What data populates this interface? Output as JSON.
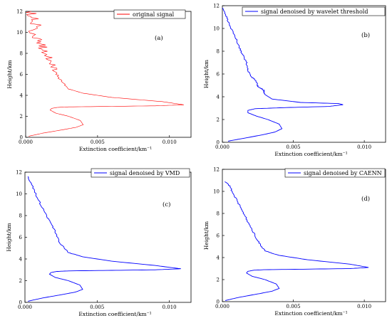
{
  "chart_data": [
    {
      "type": "line",
      "panel_label": "(a)",
      "xlabel": "Extinction coefficient/km⁻¹",
      "ylabel": "Height/km",
      "xlim": [
        0,
        0.0115
      ],
      "ylim": [
        0,
        12
      ],
      "xticks": [
        "0.000",
        "0.005",
        "0.010"
      ],
      "xtick_values": [
        0,
        0.005,
        0.01
      ],
      "yticks": [
        "0",
        "2",
        "4",
        "6",
        "8",
        "10",
        "12"
      ],
      "ytick_values": [
        0,
        2,
        4,
        6,
        8,
        10,
        12
      ],
      "legend_position": "top-right",
      "series": [
        {
          "name": "original signal",
          "color": "#ff0000",
          "noisy": true,
          "x": [
            0.0002,
            0.0012,
            0.0025,
            0.0035,
            0.004,
            0.0038,
            0.003,
            0.0021,
            0.0017,
            0.0018,
            0.0022,
            0.003,
            0.006,
            0.009,
            0.011,
            0.0095,
            0.006,
            0.004,
            0.003,
            0.0024,
            0.002,
            0.0016,
            0.0012,
            0.0008,
            0.0005,
            0.0004
          ],
          "y": [
            0.1,
            0.4,
            0.7,
            0.95,
            1.2,
            1.6,
            2.0,
            2.3,
            2.6,
            2.75,
            2.85,
            2.9,
            2.95,
            3.0,
            3.1,
            3.4,
            3.8,
            4.2,
            4.6,
            5.5,
            6.5,
            7.5,
            8.5,
            9.5,
            11,
            12
          ]
        }
      ]
    },
    {
      "type": "line",
      "panel_label": "(b)",
      "xlabel": "Extinction coefficient/km⁻¹",
      "ylabel": "Height/km",
      "xlim": [
        0,
        0.0115
      ],
      "ylim": [
        0,
        12
      ],
      "xticks": [
        "0.000",
        "0.005",
        "0.010"
      ],
      "xtick_values": [
        0,
        0.005,
        0.01
      ],
      "yticks": [
        "0",
        "2",
        "4",
        "6",
        "8",
        "10",
        "12"
      ],
      "ytick_values": [
        0,
        2,
        4,
        6,
        8,
        10,
        12
      ],
      "legend_position": "top-right",
      "series": [
        {
          "name": "signal denoised by wavelet threshold",
          "color": "#0000ff",
          "noisy": false,
          "x": [
            0.0004,
            0.0015,
            0.0028,
            0.0037,
            0.0042,
            0.004,
            0.0032,
            0.0024,
            0.0018,
            0.0018,
            0.0023,
            0.0045,
            0.0075,
            0.0085,
            0.0082,
            0.0055,
            0.0035,
            0.003,
            0.0029,
            0.0025,
            0.0024,
            0.002,
            0.0018,
            0.0017,
            0.0013,
            0.001,
            0.0006,
            0.0003,
            0.0
          ],
          "y": [
            0.1,
            0.35,
            0.65,
            0.9,
            1.2,
            1.6,
            2.0,
            2.3,
            2.6,
            2.8,
            2.95,
            3.05,
            3.15,
            3.3,
            3.4,
            3.5,
            3.8,
            4.2,
            4.6,
            4.9,
            5.4,
            5.8,
            6.3,
            7.0,
            8.0,
            9.0,
            10.0,
            11.0,
            11.8
          ]
        }
      ]
    },
    {
      "type": "line",
      "panel_label": "(c)",
      "xlabel": "Extinction coefficient/km⁻¹",
      "ylabel": "Height/km",
      "xlim": [
        0,
        0.0115
      ],
      "ylim": [
        0,
        12
      ],
      "xticks": [
        "0.000",
        "0.005",
        "0.010"
      ],
      "xtick_values": [
        0,
        0.005,
        0.01
      ],
      "yticks": [
        "0",
        "2",
        "4",
        "6",
        "8",
        "10",
        "12"
      ],
      "ytick_values": [
        0,
        2,
        4,
        6,
        8,
        10,
        12
      ],
      "legend_position": "top-right",
      "series": [
        {
          "name": "signal denoised by VMD",
          "color": "#0000ff",
          "noisy": false,
          "x": [
            0.0002,
            0.0012,
            0.0025,
            0.0035,
            0.004,
            0.0038,
            0.003,
            0.0021,
            0.0017,
            0.0018,
            0.0022,
            0.003,
            0.006,
            0.009,
            0.0108,
            0.009,
            0.006,
            0.004,
            0.003,
            0.0024,
            0.0021,
            0.0017,
            0.0013,
            0.0009,
            0.0005,
            0.0002
          ],
          "y": [
            0.1,
            0.4,
            0.7,
            0.95,
            1.2,
            1.6,
            2.0,
            2.3,
            2.6,
            2.75,
            2.85,
            2.9,
            2.95,
            3.0,
            3.1,
            3.4,
            3.8,
            4.2,
            4.6,
            5.5,
            6.5,
            7.5,
            8.5,
            9.5,
            10.8,
            11.6
          ]
        }
      ]
    },
    {
      "type": "line",
      "panel_label": "(d)",
      "xlabel": "Extinction coefficient/km⁻¹",
      "ylabel": "Height/km",
      "xlim": [
        0,
        0.0115
      ],
      "ylim": [
        0,
        12
      ],
      "xticks": [
        "0.000",
        "0.005",
        "0.010"
      ],
      "xtick_values": [
        0,
        0.005,
        0.01
      ],
      "yticks": [
        "0",
        "2",
        "4",
        "6",
        "8",
        "10",
        "12"
      ],
      "ytick_values": [
        0,
        2,
        4,
        6,
        8,
        10,
        12
      ],
      "legend_position": "top-right",
      "series": [
        {
          "name": "signal denoised by CAENN",
          "color": "#0000ff",
          "noisy": false,
          "x": [
            0.0002,
            0.0012,
            0.0025,
            0.0035,
            0.004,
            0.0038,
            0.003,
            0.0021,
            0.0017,
            0.0018,
            0.0022,
            0.003,
            0.006,
            0.009,
            0.0103,
            0.009,
            0.006,
            0.004,
            0.003,
            0.0025,
            0.0021,
            0.0017,
            0.0013,
            0.0009,
            0.0005,
            0.0002
          ],
          "y": [
            0.1,
            0.4,
            0.7,
            0.95,
            1.2,
            1.6,
            2.0,
            2.3,
            2.6,
            2.75,
            2.85,
            2.9,
            2.95,
            3.0,
            3.1,
            3.4,
            3.8,
            4.2,
            4.6,
            5.5,
            6.5,
            7.5,
            8.5,
            9.5,
            10.5,
            10.9
          ]
        }
      ]
    }
  ]
}
